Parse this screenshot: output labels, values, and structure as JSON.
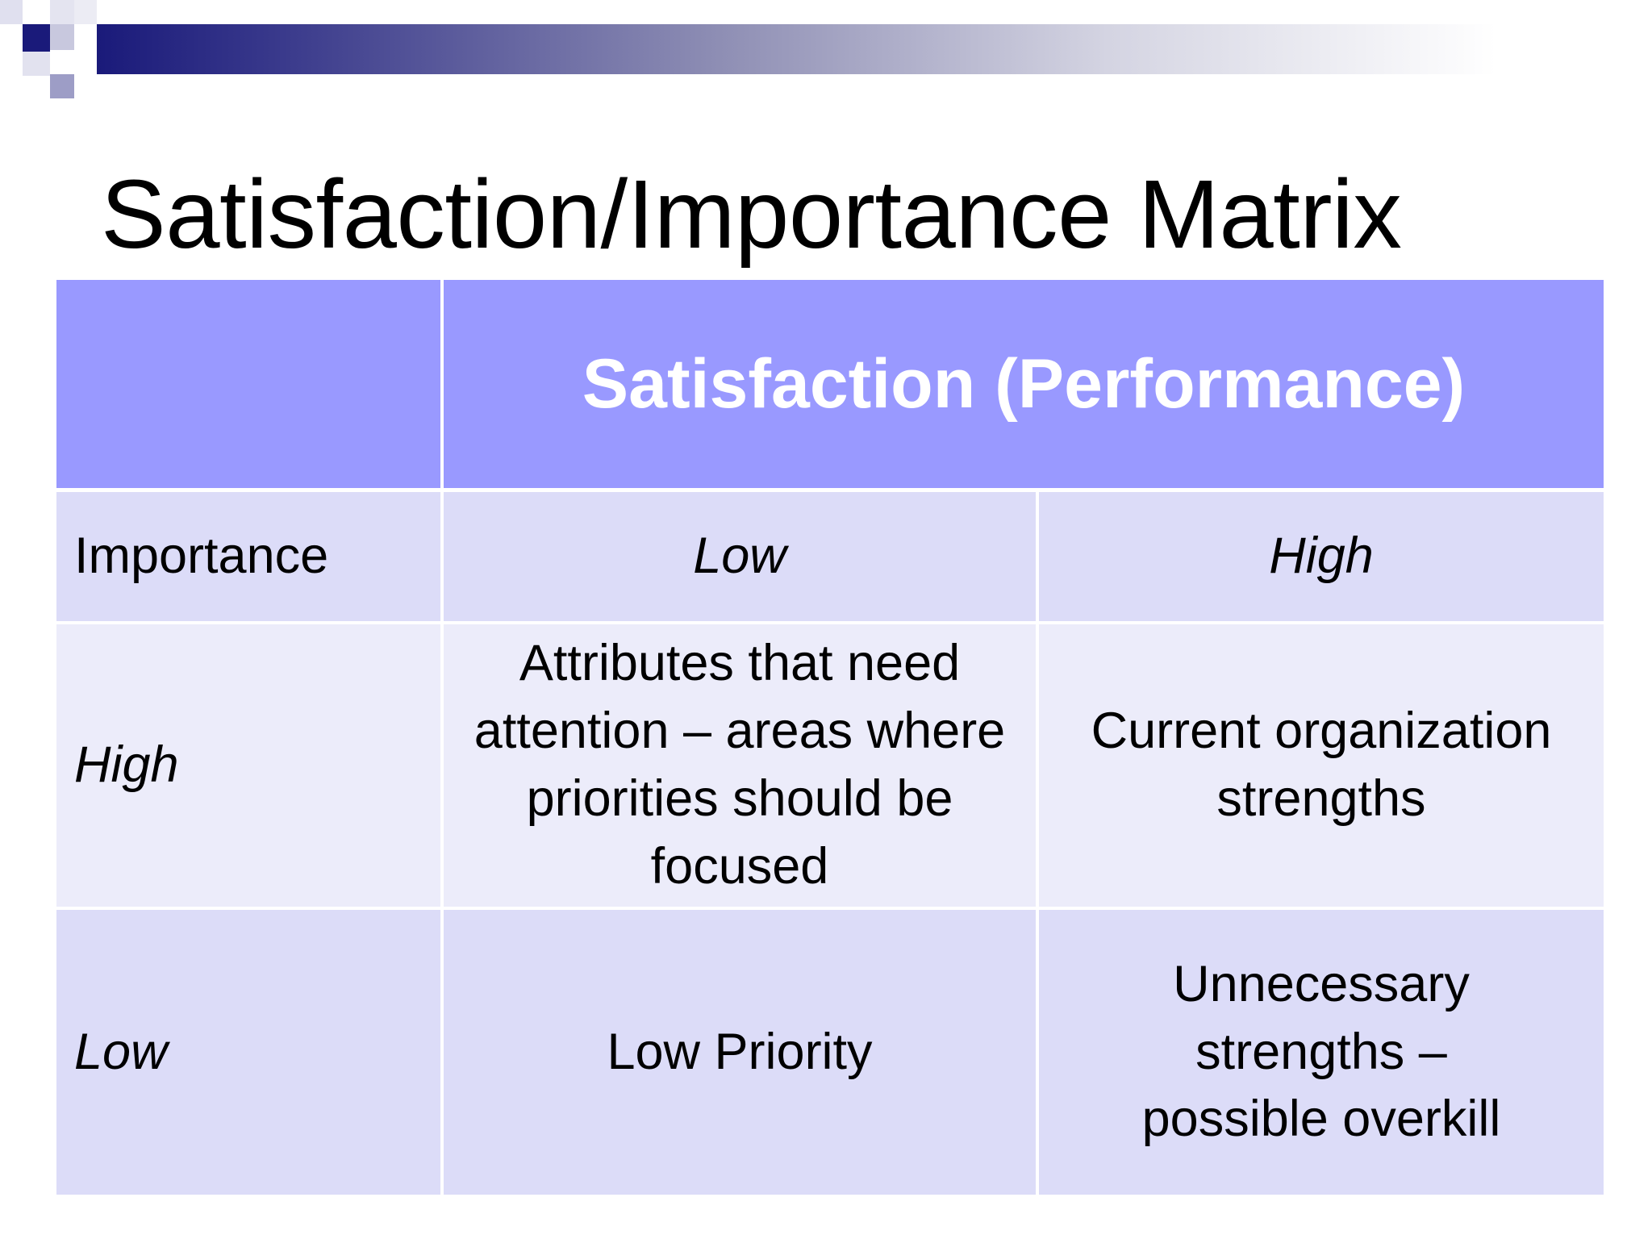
{
  "slide": {
    "title": "Satisfaction/Importance Matrix"
  },
  "matrix": {
    "header": "Satisfaction (Performance)",
    "row_label_header": "Importance",
    "column_labels": [
      "Low",
      "High"
    ],
    "rows": [
      {
        "label": "High",
        "cells": [
          "Attributes that need attention – areas where priorities should be focused",
          "Current organization strengths"
        ]
      },
      {
        "label": "Low",
        "cells": [
          "Low Priority",
          "Unnecessary strengths – possible overkill"
        ]
      }
    ]
  },
  "colors": {
    "header_fill": "#9999ff",
    "light_fill": "#ececfa",
    "mid_fill": "#dcdcf8",
    "banner_dark": "#1a1a7a"
  }
}
